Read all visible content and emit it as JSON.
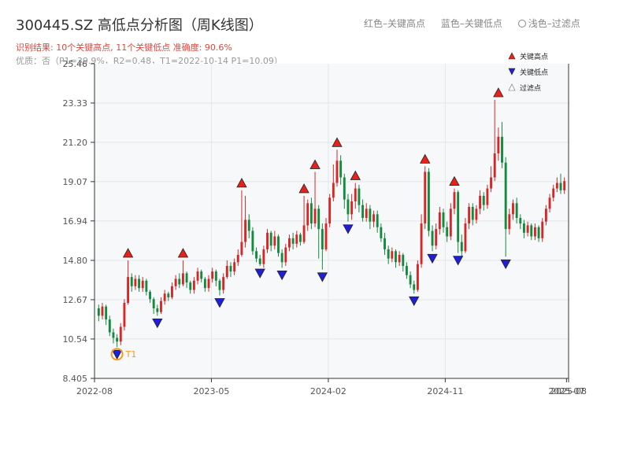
{
  "header": {
    "title": "300445.SZ 高低点分析图（周K线图）",
    "subtitle": "识别结果: 10个关键高点, 11个关键低点  准确度: 90.6%",
    "subtitle2": "优质：否（P1=39.9%，R2=0.48，T1=2022-10-14 P1=10.09）"
  },
  "top_legend": {
    "red_label": "红色–关键高点",
    "blue_label": "蓝色–关键低点",
    "filtered_label": "浅色–过滤点"
  },
  "colors": {
    "up": "#d62728",
    "down": "#138a3e",
    "high_marker": "#e8211b",
    "low_marker": "#1f1fd6",
    "t1_ring": "#f29b1d",
    "plot_bg": "#f7f8fa",
    "grid": "#e3e6ea"
  },
  "chart_data": {
    "type": "candlestick",
    "title": "300445.SZ 高低点分析图（周K线图）",
    "y_axis": {
      "min": 8.405,
      "max": 25.46,
      "ticks": [
        "8.405",
        "10.54",
        "12.67",
        "14.80",
        "16.94",
        "19.07",
        "21.20",
        "23.33",
        "25.46"
      ]
    },
    "x_axis": {
      "start": "2022-07",
      "end": "2025-08",
      "tick_labels": [
        {
          "label": "2022-08",
          "t": 0.0
        },
        {
          "label": "2023-05",
          "t": 0.2466
        },
        {
          "label": "2024-02",
          "t": 0.4932
        },
        {
          "label": "2024-11",
          "t": 0.7398
        },
        {
          "label": "2025-07",
          "t": 0.9956
        },
        {
          "label": "2025-08",
          "t": 1.0
        }
      ]
    },
    "candles": [
      [
        12.2,
        11.8,
        12.4,
        11.5
      ],
      [
        11.8,
        12.3,
        12.5,
        11.6
      ],
      [
        12.3,
        11.6,
        12.4,
        11.3
      ],
      [
        11.6,
        10.9,
        11.8,
        10.7
      ],
      [
        10.9,
        10.6,
        11.1,
        10.3
      ],
      [
        10.6,
        10.4,
        10.8,
        10.1
      ],
      [
        10.4,
        11.2,
        11.4,
        10.2
      ],
      [
        11.2,
        12.5,
        12.7,
        11.0
      ],
      [
        12.5,
        13.9,
        14.8,
        12.4
      ],
      [
        13.9,
        13.4,
        14.1,
        13.1
      ],
      [
        13.4,
        13.8,
        14.0,
        13.2
      ],
      [
        13.8,
        13.3,
        14.0,
        13.1
      ],
      [
        13.3,
        13.7,
        13.9,
        13.1
      ],
      [
        13.7,
        13.1,
        13.8,
        12.9
      ],
      [
        13.1,
        12.7,
        13.2,
        12.5
      ],
      [
        12.7,
        12.2,
        12.8,
        11.9
      ],
      [
        12.2,
        12.0,
        12.4,
        11.8
      ],
      [
        12.0,
        12.6,
        12.8,
        11.9
      ],
      [
        12.6,
        13.0,
        13.2,
        12.4
      ],
      [
        13.0,
        12.8,
        13.1,
        12.6
      ],
      [
        12.8,
        13.4,
        13.6,
        12.7
      ],
      [
        13.4,
        13.8,
        14.0,
        13.2
      ],
      [
        13.8,
        13.5,
        14.1,
        13.3
      ],
      [
        13.5,
        14.1,
        14.8,
        13.4
      ],
      [
        14.1,
        13.6,
        14.2,
        13.3
      ],
      [
        13.6,
        13.2,
        13.7,
        13.0
      ],
      [
        13.2,
        13.7,
        13.9,
        13.0
      ],
      [
        13.7,
        14.2,
        14.4,
        13.5
      ],
      [
        14.2,
        13.8,
        14.3,
        13.6
      ],
      [
        13.8,
        13.3,
        13.9,
        13.1
      ],
      [
        13.3,
        13.8,
        14.0,
        13.1
      ],
      [
        13.8,
        14.2,
        14.4,
        13.6
      ],
      [
        14.2,
        13.7,
        14.3,
        13.4
      ],
      [
        13.7,
        13.2,
        13.8,
        12.9
      ],
      [
        13.2,
        13.9,
        14.1,
        13.0
      ],
      [
        13.9,
        14.5,
        14.8,
        13.8
      ],
      [
        14.5,
        14.2,
        14.7,
        13.9
      ],
      [
        14.2,
        14.7,
        14.9,
        14.0
      ],
      [
        14.7,
        15.1,
        15.4,
        14.5
      ],
      [
        15.1,
        15.8,
        18.6,
        15.0
      ],
      [
        15.8,
        17.0,
        18.3,
        15.5
      ],
      [
        17.0,
        16.4,
        17.3,
        16.0
      ],
      [
        16.4,
        15.3,
        16.6,
        15.1
      ],
      [
        15.3,
        14.9,
        15.5,
        14.7
      ],
      [
        14.9,
        14.6,
        15.1,
        14.5
      ],
      [
        14.6,
        15.4,
        15.6,
        14.4
      ],
      [
        15.4,
        16.3,
        16.5,
        15.2
      ],
      [
        16.3,
        15.6,
        16.4,
        15.3
      ],
      [
        15.6,
        16.1,
        16.4,
        15.4
      ],
      [
        16.1,
        15.2,
        16.2,
        15.0
      ],
      [
        15.2,
        14.7,
        15.4,
        14.4
      ],
      [
        14.7,
        15.5,
        15.7,
        14.5
      ],
      [
        15.5,
        16.0,
        16.2,
        15.3
      ],
      [
        16.0,
        15.7,
        16.3,
        15.4
      ],
      [
        15.7,
        16.2,
        16.4,
        15.5
      ],
      [
        16.2,
        15.8,
        16.3,
        15.6
      ],
      [
        15.8,
        16.7,
        18.3,
        15.7
      ],
      [
        16.7,
        17.9,
        18.1,
        16.4
      ],
      [
        17.9,
        16.8,
        18.2,
        16.5
      ],
      [
        16.8,
        17.6,
        19.6,
        16.6
      ],
      [
        17.6,
        16.5,
        17.8,
        14.9
      ],
      [
        16.5,
        15.4,
        16.8,
        14.3
      ],
      [
        15.4,
        16.8,
        17.1,
        15.3
      ],
      [
        16.8,
        18.2,
        18.4,
        16.6
      ],
      [
        18.2,
        19.0,
        20.0,
        18.0
      ],
      [
        19.0,
        20.2,
        20.8,
        18.8
      ],
      [
        20.2,
        19.3,
        20.5,
        18.9
      ],
      [
        19.3,
        18.1,
        19.5,
        17.6
      ],
      [
        18.1,
        17.3,
        18.4,
        16.9
      ],
      [
        17.3,
        18.0,
        18.4,
        17.0
      ],
      [
        18.0,
        18.7,
        19.0,
        17.6
      ],
      [
        18.7,
        17.8,
        18.9,
        17.4
      ],
      [
        17.8,
        17.1,
        18.1,
        16.9
      ],
      [
        17.1,
        17.6,
        17.9,
        16.9
      ],
      [
        17.6,
        16.9,
        17.8,
        16.5
      ],
      [
        16.9,
        17.3,
        17.5,
        16.6
      ],
      [
        17.3,
        16.6,
        17.5,
        16.3
      ],
      [
        16.6,
        16.0,
        16.8,
        15.8
      ],
      [
        16.0,
        15.4,
        16.3,
        15.1
      ],
      [
        15.4,
        14.9,
        15.6,
        14.6
      ],
      [
        14.9,
        15.3,
        15.5,
        14.7
      ],
      [
        15.3,
        14.7,
        15.4,
        14.4
      ],
      [
        14.7,
        15.1,
        15.3,
        14.5
      ],
      [
        15.1,
        14.5,
        15.2,
        14.2
      ],
      [
        14.5,
        14.0,
        14.7,
        13.8
      ],
      [
        14.0,
        13.5,
        14.2,
        13.3
      ],
      [
        13.5,
        13.2,
        13.7,
        13.0
      ],
      [
        13.2,
        14.6,
        14.8,
        13.1
      ],
      [
        14.6,
        16.8,
        17.3,
        14.4
      ],
      [
        16.8,
        19.6,
        19.9,
        16.5
      ],
      [
        19.6,
        16.4,
        19.8,
        16.1
      ],
      [
        16.4,
        15.6,
        16.7,
        15.3
      ],
      [
        15.6,
        16.5,
        16.8,
        15.4
      ],
      [
        16.5,
        17.4,
        17.7,
        16.2
      ],
      [
        17.4,
        16.6,
        17.6,
        16.3
      ],
      [
        16.6,
        16.1,
        16.9,
        15.8
      ],
      [
        16.1,
        17.6,
        17.9,
        15.9
      ],
      [
        17.6,
        18.5,
        18.7,
        17.3
      ],
      [
        18.5,
        15.8,
        18.6,
        15.2
      ],
      [
        15.8,
        15.3,
        16.2,
        15.0
      ],
      [
        15.3,
        16.8,
        17.1,
        15.2
      ],
      [
        16.8,
        17.7,
        17.9,
        16.5
      ],
      [
        17.7,
        17.0,
        17.9,
        16.7
      ],
      [
        17.0,
        17.6,
        17.8,
        16.8
      ],
      [
        17.6,
        18.3,
        18.6,
        17.3
      ],
      [
        18.3,
        17.8,
        18.5,
        17.5
      ],
      [
        17.8,
        18.7,
        18.9,
        17.6
      ],
      [
        18.7,
        19.3,
        19.9,
        18.5
      ],
      [
        19.3,
        20.6,
        23.5,
        19.1
      ],
      [
        20.6,
        21.5,
        22.0,
        20.2
      ],
      [
        21.5,
        20.1,
        22.3,
        19.8
      ],
      [
        20.1,
        16.5,
        20.4,
        15.0
      ],
      [
        16.5,
        17.3,
        17.6,
        16.2
      ],
      [
        17.3,
        17.9,
        18.1,
        17.0
      ],
      [
        17.9,
        17.1,
        18.2,
        16.8
      ],
      [
        17.1,
        16.8,
        17.3,
        16.5
      ],
      [
        16.8,
        16.3,
        17.0,
        16.0
      ],
      [
        16.3,
        16.7,
        16.9,
        16.1
      ],
      [
        16.7,
        16.1,
        16.8,
        15.9
      ],
      [
        16.1,
        16.6,
        16.8,
        15.9
      ],
      [
        16.6,
        16.0,
        16.7,
        15.8
      ],
      [
        16.0,
        16.9,
        17.1,
        15.8
      ],
      [
        16.9,
        17.6,
        17.8,
        16.7
      ],
      [
        17.6,
        18.2,
        18.4,
        17.4
      ],
      [
        18.2,
        18.7,
        18.9,
        18.0
      ],
      [
        18.7,
        19.0,
        19.3,
        18.5
      ],
      [
        19.0,
        18.6,
        19.5,
        18.4
      ],
      [
        18.6,
        19.1,
        19.3,
        18.4
      ]
    ],
    "key_highs": [
      {
        "i": 8,
        "price": 14.8
      },
      {
        "i": 23,
        "price": 14.8
      },
      {
        "i": 39,
        "price": 18.6
      },
      {
        "i": 56,
        "price": 18.3
      },
      {
        "i": 59,
        "price": 19.6
      },
      {
        "i": 65,
        "price": 20.8
      },
      {
        "i": 70,
        "price": 19.0
      },
      {
        "i": 89,
        "price": 19.9
      },
      {
        "i": 97,
        "price": 18.7
      },
      {
        "i": 109,
        "price": 23.5
      }
    ],
    "key_lows": [
      {
        "i": 5,
        "price": 10.1
      },
      {
        "i": 16,
        "price": 11.8
      },
      {
        "i": 33,
        "price": 12.9
      },
      {
        "i": 44,
        "price": 14.5
      },
      {
        "i": 50,
        "price": 14.4
      },
      {
        "i": 61,
        "price": 14.3
      },
      {
        "i": 68,
        "price": 16.9
      },
      {
        "i": 86,
        "price": 13.0
      },
      {
        "i": 91,
        "price": 15.3
      },
      {
        "i": 98,
        "price": 15.2
      },
      {
        "i": 111,
        "price": 15.0
      }
    ],
    "t1": {
      "i": 5,
      "label": "T1"
    },
    "legend": {
      "placement": "top-right",
      "entries": [
        "关键高点",
        "关键低点",
        "过滤点"
      ]
    }
  }
}
